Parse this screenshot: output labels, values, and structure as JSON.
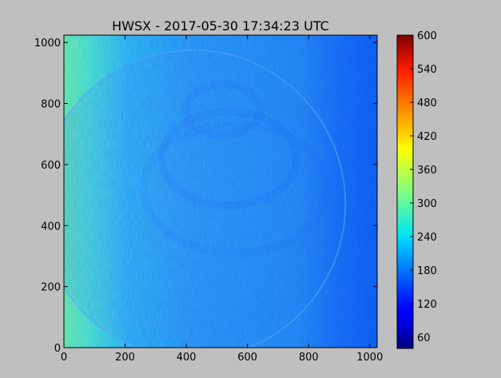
{
  "chart_data": {
    "type": "heatmap",
    "title": "HWSX - 2017-05-30 17:34:23 UTC",
    "xlabel": "",
    "ylabel": "",
    "xlim": [
      0,
      1024
    ],
    "ylim": [
      0,
      1024
    ],
    "x_ticks": [
      0,
      200,
      400,
      600,
      800,
      1000
    ],
    "y_ticks": [
      0,
      200,
      400,
      600,
      800,
      1000
    ],
    "colorbar": {
      "colormap": "jet",
      "range": [
        40,
        600
      ],
      "ticks": [
        60,
        120,
        180,
        240,
        300,
        360,
        420,
        480,
        540,
        600
      ]
    },
    "image_description_values": {
      "left_region_level": 300,
      "disk_level": 190,
      "background_level": 125
    }
  },
  "colors": {
    "figure_background": "#bfbfbf",
    "axes_edge": "#000000"
  }
}
